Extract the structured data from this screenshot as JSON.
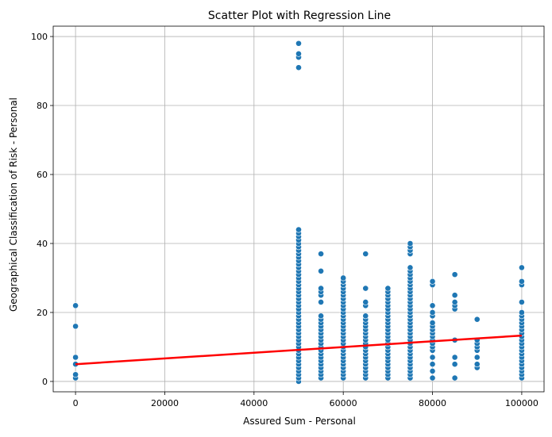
{
  "chart_data": {
    "type": "scatter",
    "title": "Scatter Plot with Regression Line",
    "xlabel": "Assured Sum - Personal",
    "ylabel": "Geographical Classification of Risk - Personal",
    "xlim": [
      -5000,
      105000
    ],
    "ylim": [
      -3,
      103
    ],
    "x_ticks": [
      0,
      20000,
      40000,
      60000,
      80000,
      100000
    ],
    "y_ticks": [
      0,
      20,
      40,
      60,
      80,
      100
    ],
    "grid": true,
    "point_color": "#1f77b4",
    "line_color": "#ff0000",
    "regression_line": {
      "x": [
        0,
        100000
      ],
      "y": [
        5.0,
        13.3
      ]
    },
    "groups": [
      {
        "x": 0,
        "y": [
          1,
          2,
          5,
          7,
          16,
          22
        ]
      },
      {
        "x": 50000,
        "y": [
          0,
          1,
          2,
          3,
          4,
          5,
          6,
          7,
          8,
          9,
          10,
          11,
          12,
          13,
          14,
          15,
          16,
          17,
          18,
          19,
          20,
          21,
          22,
          23,
          24,
          25,
          26,
          27,
          28,
          29,
          30,
          31,
          32,
          33,
          34,
          35,
          36,
          37,
          38,
          39,
          40,
          41,
          42,
          43,
          44,
          91,
          94,
          95,
          98
        ]
      },
      {
        "x": 55000,
        "y": [
          1,
          2,
          3,
          4,
          5,
          6,
          7,
          8,
          9,
          10,
          11,
          12,
          13,
          14,
          15,
          16,
          17,
          18,
          19,
          23,
          25,
          26,
          27,
          32,
          37
        ]
      },
      {
        "x": 60000,
        "y": [
          1,
          2,
          3,
          4,
          5,
          6,
          7,
          8,
          9,
          10,
          11,
          12,
          13,
          14,
          15,
          16,
          17,
          18,
          19,
          20,
          21,
          22,
          23,
          24,
          25,
          26,
          27,
          28,
          29,
          30
        ]
      },
      {
        "x": 65000,
        "y": [
          1,
          2,
          3,
          4,
          5,
          6,
          7,
          8,
          9,
          10,
          11,
          12,
          13,
          14,
          15,
          16,
          17,
          18,
          19,
          22,
          23,
          27,
          37
        ]
      },
      {
        "x": 70000,
        "y": [
          1,
          2,
          3,
          4,
          5,
          6,
          7,
          8,
          9,
          10,
          11,
          12,
          13,
          14,
          15,
          16,
          17,
          18,
          19,
          20,
          21,
          22,
          23,
          24,
          25,
          26,
          27
        ]
      },
      {
        "x": 75000,
        "y": [
          1,
          2,
          3,
          4,
          5,
          6,
          7,
          8,
          9,
          10,
          11,
          12,
          13,
          14,
          15,
          16,
          17,
          18,
          19,
          20,
          21,
          22,
          23,
          24,
          25,
          26,
          27,
          28,
          29,
          30,
          31,
          32,
          33,
          37,
          38,
          39,
          40
        ]
      },
      {
        "x": 80000,
        "y": [
          1,
          3,
          5,
          7,
          9,
          10,
          11,
          12,
          13,
          14,
          15,
          16,
          17,
          19,
          20,
          22,
          28,
          29
        ]
      },
      {
        "x": 85000,
        "y": [
          1,
          5,
          7,
          12,
          21,
          22,
          23,
          25,
          31
        ]
      },
      {
        "x": 90000,
        "y": [
          4,
          5,
          7,
          9,
          10,
          11,
          12,
          18
        ]
      },
      {
        "x": 100000,
        "y": [
          1,
          2,
          3,
          4,
          5,
          6,
          7,
          8,
          9,
          10,
          11,
          12,
          13,
          14,
          15,
          16,
          17,
          18,
          19,
          20,
          23,
          28,
          29,
          33
        ]
      }
    ]
  }
}
